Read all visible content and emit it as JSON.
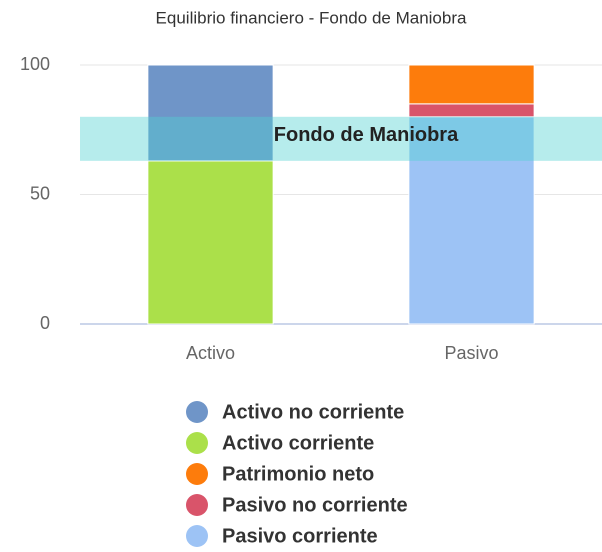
{
  "chart_data": {
    "type": "stacked_bar",
    "title": "Equilibrio financiero - Fondo de Maniobra",
    "categories": [
      "Activo",
      "Pasivo"
    ],
    "series": [
      {
        "name": "Activo no corriente",
        "color": "#6f95c8",
        "values": [
          37,
          0
        ]
      },
      {
        "name": "Activo corriente",
        "color": "#abe04a",
        "values": [
          63,
          0
        ]
      },
      {
        "name": "Patrimonio neto",
        "color": "#fd7c0c",
        "values": [
          0,
          15
        ]
      },
      {
        "name": "Pasivo no corriente",
        "color": "#d9546a",
        "values": [
          0,
          5
        ]
      },
      {
        "name": "Pasivo corriente",
        "color": "#9dc3f5",
        "values": [
          0,
          80
        ]
      }
    ],
    "ylim": [
      0,
      100
    ],
    "yticks": [
      0,
      50,
      100
    ],
    "grid": true,
    "band": {
      "from": 63,
      "to": 80,
      "label": "Fondo de Maniobra",
      "color": "rgba(80,210,210,0.42)"
    },
    "legend": "bottom"
  }
}
